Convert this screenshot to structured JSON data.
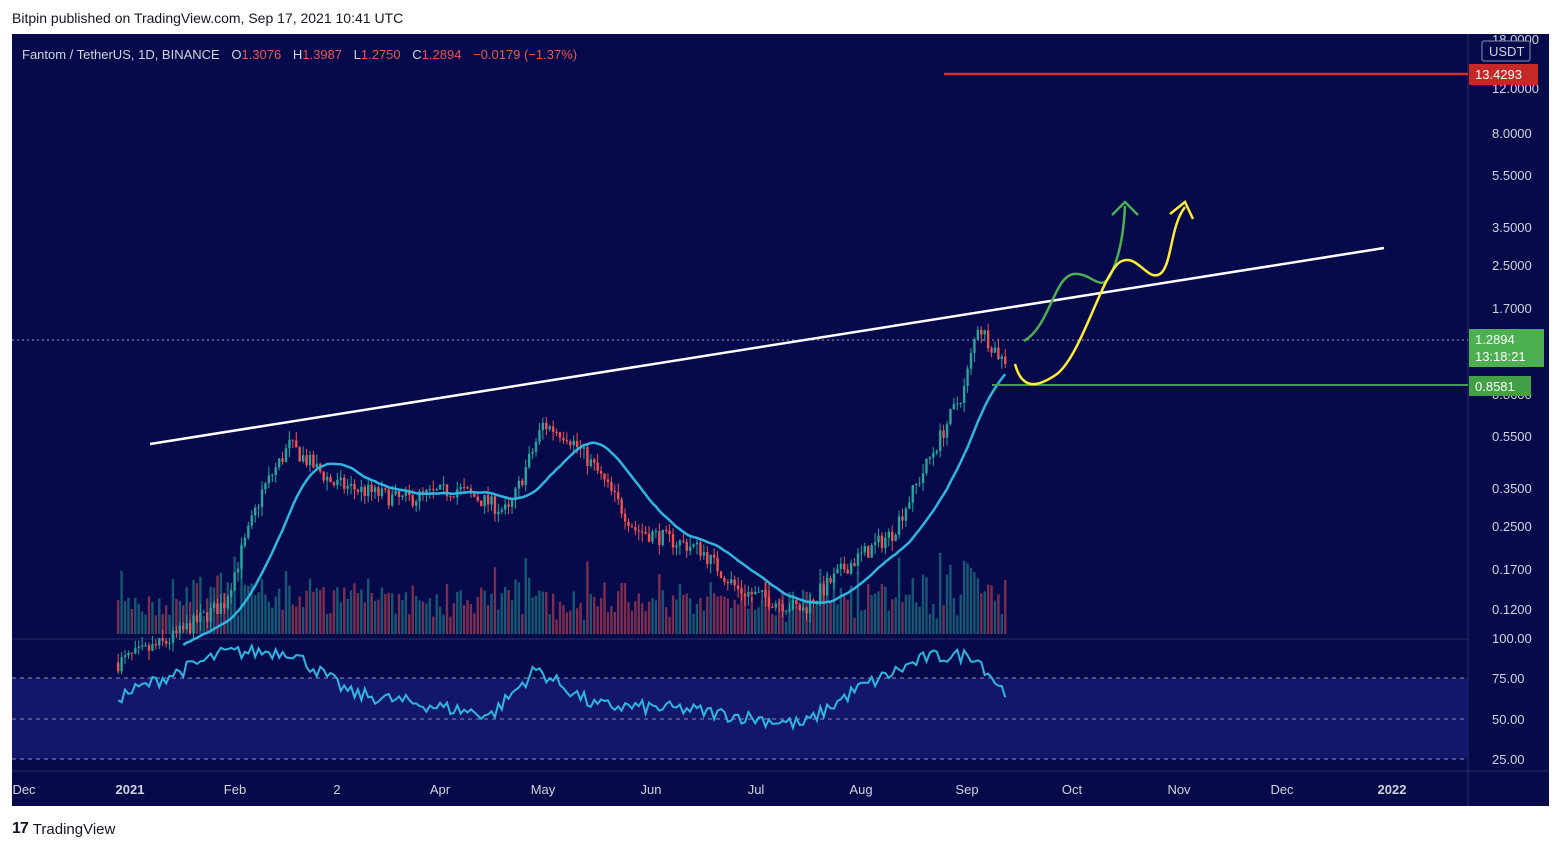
{
  "header": {
    "published_text": "Bitpin published on TradingView.com, Sep 17, 2021 10:41 UTC"
  },
  "footer": {
    "logo_glyph": "17",
    "brand": "TradingView"
  },
  "legend": {
    "symbol": "Fantom / TetherUS, 1D, BINANCE",
    "o_label": "O",
    "o_value": "1.3076",
    "h_label": "H",
    "h_value": "1.3987",
    "l_label": "L",
    "l_value": "1.2750",
    "c_label": "C",
    "c_value": "1.2894",
    "change": "−0.0179 (−1.37%)"
  },
  "colors": {
    "background": "#06094a",
    "up": "#26a69a",
    "down": "#ef5350",
    "ma": "#2fb6e0",
    "rsi": "#2fb6e0",
    "trendline": "#ffffff",
    "arrow_green": "#4caf50",
    "arrow_yellow": "#ffeb3b",
    "resistance": "#d32f2f",
    "support": "#43a047"
  },
  "price_axis": {
    "currency": "USDT",
    "labels": [
      "18.0000",
      "12.0000",
      "8.0000",
      "5.5000",
      "3.5000",
      "2.5000",
      "1.7000",
      "0.8600",
      "0.5500",
      "0.3500",
      "0.2500",
      "0.1700",
      "0.1200"
    ],
    "current_price": "1.2894",
    "countdown": "13:18:21",
    "resistance_label": "13.4293",
    "support_label": "0.8581"
  },
  "rsi_axis": {
    "labels": [
      "100.00",
      "75.00",
      "50.00",
      "25.00"
    ]
  },
  "time_axis": {
    "labels": [
      "Dec",
      "2021",
      "Feb",
      "2",
      "Apr",
      "May",
      "Jun",
      "Jul",
      "Aug",
      "Sep",
      "Oct",
      "Nov",
      "Dec",
      "2022"
    ]
  },
  "chart_data": {
    "type": "candlestick",
    "title": "Fantom / TetherUS, 1D, BINANCE",
    "scale": "log",
    "ylim": [
      0.1,
      18
    ],
    "last_candle": {
      "open": 1.3076,
      "high": 1.3987,
      "low": 1.275,
      "close": 1.2894,
      "change": -0.0179,
      "change_pct": -1.37
    },
    "close_path": [
      {
        "date": "2021-01-01",
        "close": 0.11
      },
      {
        "date": "2021-01-15",
        "close": 0.13
      },
      {
        "date": "2021-02-01",
        "close": 0.18
      },
      {
        "date": "2021-02-12",
        "close": 0.45
      },
      {
        "date": "2021-02-20",
        "close": 0.66
      },
      {
        "date": "2021-03-05",
        "close": 0.48
      },
      {
        "date": "2021-03-25",
        "close": 0.42
      },
      {
        "date": "2021-04-10",
        "close": 0.46
      },
      {
        "date": "2021-04-25",
        "close": 0.38
      },
      {
        "date": "2021-05-05",
        "close": 0.78
      },
      {
        "date": "2021-05-12",
        "close": 0.72
      },
      {
        "date": "2021-05-20",
        "close": 0.55
      },
      {
        "date": "2021-06-01",
        "close": 0.33
      },
      {
        "date": "2021-06-20",
        "close": 0.28
      },
      {
        "date": "2021-07-01",
        "close": 0.2
      },
      {
        "date": "2021-07-20",
        "close": 0.17
      },
      {
        "date": "2021-08-01",
        "close": 0.24
      },
      {
        "date": "2021-08-15",
        "close": 0.32
      },
      {
        "date": "2021-08-25",
        "close": 0.56
      },
      {
        "date": "2021-09-05",
        "close": 1.05
      },
      {
        "date": "2021-09-09",
        "close": 1.78
      },
      {
        "date": "2021-09-17",
        "close": 1.2894
      }
    ],
    "levels": [
      {
        "name": "resistance",
        "value": 13.4293
      },
      {
        "name": "support",
        "value": 0.8581
      }
    ],
    "rsi": {
      "range": [
        0,
        100
      ],
      "bands": [
        25,
        50,
        75
      ],
      "values": [
        {
          "date": "2021-01-01",
          "value": 55
        },
        {
          "date": "2021-02-01",
          "value": 92
        },
        {
          "date": "2021-02-20",
          "value": 93
        },
        {
          "date": "2021-03-10",
          "value": 58
        },
        {
          "date": "2021-04-20",
          "value": 40
        },
        {
          "date": "2021-05-03",
          "value": 78
        },
        {
          "date": "2021-05-20",
          "value": 48
        },
        {
          "date": "2021-06-15",
          "value": 45
        },
        {
          "date": "2021-07-20",
          "value": 32
        },
        {
          "date": "2021-08-05",
          "value": 62
        },
        {
          "date": "2021-08-25",
          "value": 88
        },
        {
          "date": "2021-09-08",
          "value": 90
        },
        {
          "date": "2021-09-17",
          "value": 58
        }
      ]
    }
  }
}
